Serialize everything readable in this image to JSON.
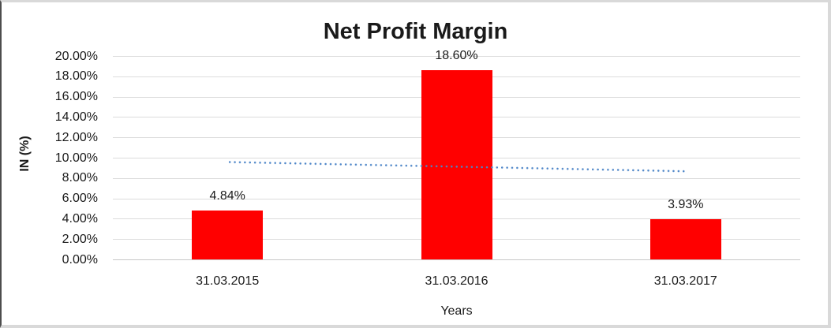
{
  "chart_data": {
    "type": "bar",
    "title": "Net Profit Margin",
    "xlabel": "Years",
    "ylabel": "IN (%)",
    "categories": [
      "31.03.2015",
      "31.03.2016",
      "31.03.2017"
    ],
    "series": [
      {
        "name": "Net Profit Margin",
        "values": [
          4.84,
          18.6,
          3.93
        ],
        "value_labels": [
          "4.84%",
          "18.60%",
          "3.93%"
        ],
        "color": "#FF0000"
      }
    ],
    "ylim": [
      0,
      20
    ],
    "y_ticks": [
      {
        "value": 20,
        "label": "20.00%"
      },
      {
        "value": 18,
        "label": "18.00%"
      },
      {
        "value": 16,
        "label": "16.00%"
      },
      {
        "value": 14,
        "label": "14.00%"
      },
      {
        "value": 12,
        "label": "12.00%"
      },
      {
        "value": 10,
        "label": "10.00%"
      },
      {
        "value": 8,
        "label": "8.00%"
      },
      {
        "value": 6,
        "label": "6.00%"
      },
      {
        "value": 4,
        "label": "4.00%"
      },
      {
        "value": 2,
        "label": "2.00%"
      },
      {
        "value": 0,
        "label": "0.00%"
      }
    ],
    "grid": true,
    "legend": "none",
    "trendline": {
      "type": "linear",
      "line_style": "dotted",
      "color": "#4E86C8",
      "start_value": 9.58,
      "end_value": 8.67
    },
    "gridline_color": "#DCDCDC",
    "axis_line_color": "#C6C6C6",
    "frame_color": "#D9D9D9"
  }
}
